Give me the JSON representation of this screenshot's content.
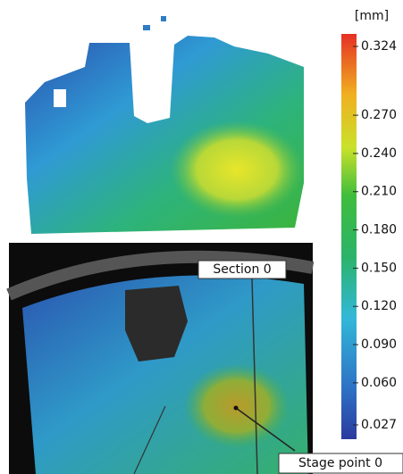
{
  "colorbar": {
    "unit": "[mm]",
    "range": [
      0.027,
      0.324
    ],
    "ticks": [
      {
        "value": 0.324,
        "label": "0.324"
      },
      {
        "value": 0.27,
        "label": "0.270"
      },
      {
        "value": 0.24,
        "label": "0.240"
      },
      {
        "value": 0.21,
        "label": "0.210"
      },
      {
        "value": 0.18,
        "label": "0.180"
      },
      {
        "value": 0.15,
        "label": "0.150"
      },
      {
        "value": 0.12,
        "label": "0.120"
      },
      {
        "value": 0.09,
        "label": "0.090"
      },
      {
        "value": 0.06,
        "label": "0.060"
      },
      {
        "value": 0.027,
        "label": "0.027"
      }
    ]
  },
  "annotations": {
    "section": "Section 0",
    "stage_point": "Stage point 0"
  }
}
